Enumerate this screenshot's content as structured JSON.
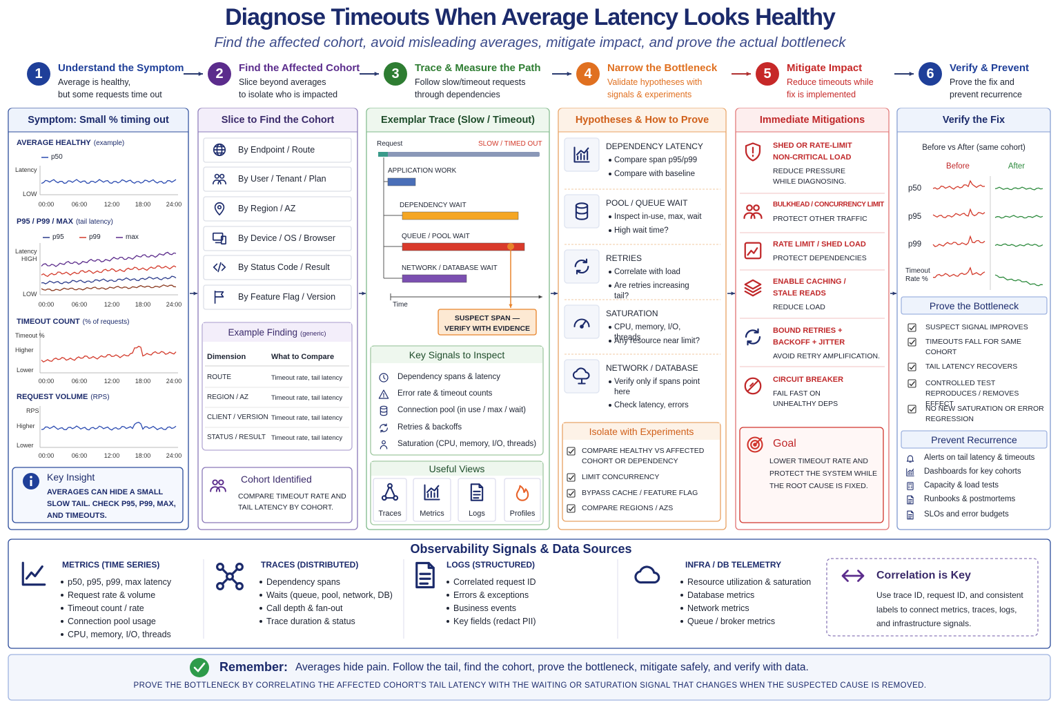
{
  "header": {
    "title": "Diagnose Timeouts When Average Latency Looks Healthy",
    "subtitle": "Find the affected cohort, avoid misleading averages, mitigate impact, and prove the actual bottleneck"
  },
  "steps": [
    {
      "number": 1,
      "title": "Understand the Symptom",
      "lines": [
        "Average is healthy,",
        "but some requests time out"
      ]
    },
    {
      "number": 2,
      "title": "Find the Affected Cohort",
      "lines": [
        "Slice beyond averages",
        "to isolate who is impacted"
      ]
    },
    {
      "number": 3,
      "title": "Trace & Measure the Path",
      "lines": [
        "Follow slow/timeout requests",
        "through dependencies"
      ]
    },
    {
      "number": 4,
      "title": "Narrow the Bottleneck",
      "lines": [
        "Validate hypotheses with",
        "signals & experiments"
      ]
    },
    {
      "number": 5,
      "title": "Mitigate Impact",
      "lines": [
        "Reduce timeouts while",
        "fix is implemented"
      ]
    },
    {
      "number": 6,
      "title": "Verify & Prevent",
      "lines": [
        "Prove the fix and",
        "prevent recurrence"
      ]
    }
  ],
  "symptom": {
    "title": "Symptom: Small % timing out",
    "charts": [
      {
        "title": "AVERAGE HEALTHY",
        "note": "(example)",
        "legend": [
          "p50"
        ],
        "y_labels": [
          "Latency",
          "LOW"
        ],
        "x_labels": [
          "00:00",
          "06:00",
          "12:00",
          "18:00",
          "24:00"
        ]
      },
      {
        "title": "P95 / P99 / MAX",
        "note": "(tail latency)",
        "legend": [
          "p95",
          "p99",
          "max"
        ],
        "y_labels": [
          "Latency",
          "HIGH",
          "LOW"
        ],
        "x_labels": [
          "00:00",
          "06:00",
          "12:00",
          "18:00",
          "24:00"
        ]
      },
      {
        "title": "TIMEOUT COUNT",
        "note": "(% of requests)",
        "y_labels": [
          "Timeout %",
          "Higher",
          "Lower"
        ],
        "x_labels": [
          "00:00",
          "06:00",
          "12:00",
          "18:00",
          "24:00"
        ]
      },
      {
        "title": "REQUEST VOLUME",
        "note": "(RPS)",
        "y_labels": [
          "RPS",
          "Higher",
          "Lower"
        ],
        "x_labels": [
          "00:00",
          "06:00",
          "12:00",
          "18:00",
          "24:00"
        ]
      }
    ],
    "insight": {
      "title": "Key Insight",
      "text": "AVERAGES CAN HIDE A SMALL SLOW TAIL. CHECK P95, P99, MAX, AND TIMEOUTS."
    }
  },
  "cohort": {
    "title": "Slice to Find the Cohort",
    "slices": [
      "By Endpoint / Route",
      "By User / Tenant / Plan",
      "By Region / AZ",
      "By Device / OS / Browser",
      "By Status Code / Result",
      "By Feature Flag / Version"
    ],
    "finding": {
      "title": "Example Finding",
      "note": "(generic)",
      "columns": [
        "Dimension",
        "What to Compare"
      ],
      "rows": [
        [
          "ROUTE",
          "Timeout rate, tail latency"
        ],
        [
          "REGION / AZ",
          "Timeout rate, tail latency"
        ],
        [
          "CLIENT / VERSION",
          "Timeout rate, tail latency"
        ],
        [
          "STATUS / RESULT",
          "Timeout rate, tail latency"
        ]
      ]
    },
    "identified": {
      "title": "Cohort Identified",
      "text": "COMPARE TIMEOUT RATE AND TAIL LATENCY BY COHORT."
    }
  },
  "trace": {
    "title": "Exemplar Trace (Slow / Timeout)",
    "request": "Request",
    "status": "SLOW / TIMED OUT",
    "spans": [
      "APPLICATION WORK",
      "DEPENDENCY WAIT",
      "QUEUE / POOL WAIT",
      "NETWORK / DATABASE WAIT"
    ],
    "axis": "Time",
    "suspect": [
      "SUSPECT SPAN —",
      "VERIFY WITH EVIDENCE"
    ],
    "signals": {
      "title": "Key Signals to Inspect",
      "items": [
        "Dependency spans & latency",
        "Error rate & timeout counts",
        "Connection pool (in use / max / wait)",
        "Retries & backoffs",
        "Saturation (CPU, memory, I/O, threads)"
      ]
    },
    "views": {
      "title": "Useful Views",
      "items": [
        "Traces",
        "Metrics",
        "Logs",
        "Profiles"
      ]
    }
  },
  "hypotheses": {
    "title": "Hypotheses & How to Prove",
    "items": [
      {
        "title": "DEPENDENCY LATENCY",
        "bullets": [
          "Compare span p95/p99",
          "Compare with baseline"
        ]
      },
      {
        "title": "POOL / QUEUE WAIT",
        "bullets": [
          "Inspect in-use, max, wait",
          "High wait time?"
        ]
      },
      {
        "title": "RETRIES",
        "bullets": [
          "Correlate with load",
          "Are retries increasing tail?"
        ]
      },
      {
        "title": "SATURATION",
        "bullets": [
          "CPU, memory, I/O, threads",
          "Any resource near limit?"
        ]
      },
      {
        "title": "NETWORK / DATABASE",
        "bullets": [
          "Verify only if spans point here",
          "Check latency, errors"
        ]
      }
    ],
    "experiments": {
      "title": "Isolate with Experiments",
      "items": [
        "COMPARE HEALTHY VS AFFECTED COHORT OR DEPENDENCY",
        "LIMIT CONCURRENCY",
        "BYPASS CACHE / FEATURE FLAG",
        "COMPARE REGIONS / AZS"
      ]
    }
  },
  "mitigations": {
    "title": "Immediate Mitigations",
    "items": [
      {
        "title": [
          "SHED OR RATE-LIMIT",
          "NON-CRITICAL LOAD"
        ],
        "text": [
          "REDUCE PRESSURE",
          "WHILE DIAGNOSING."
        ]
      },
      {
        "title": [
          "BULKHEAD / CONCURRENCY LIMIT"
        ],
        "text": [
          "PROTECT OTHER TRAFFIC"
        ]
      },
      {
        "title": [
          "RATE LIMIT / SHED LOAD"
        ],
        "text": [
          "PROTECT DEPENDENCIES"
        ]
      },
      {
        "title": [
          "ENABLE CACHING /",
          "STALE READS"
        ],
        "text": [
          "REDUCE LOAD"
        ]
      },
      {
        "title": [
          "BOUND RETRIES +",
          "BACKOFF + JITTER"
        ],
        "text": [
          "AVOID RETRY AMPLIFICATION."
        ]
      },
      {
        "title": [
          "CIRCUIT BREAKER"
        ],
        "text": [
          "FAIL FAST ON",
          "UNHEALTHY DEPS"
        ]
      }
    ],
    "goal": {
      "title": "Goal",
      "text": "LOWER TIMEOUT RATE AND PROTECT THE SYSTEM WHILE THE ROOT CAUSE IS FIXED."
    }
  },
  "verify": {
    "title": "Verify the Fix",
    "comparison": "Before vs After (same cohort)",
    "before": "Before",
    "after": "After",
    "rows": [
      "p50",
      "p95",
      "p99",
      "Timeout Rate %"
    ],
    "prove": {
      "title": "Prove the Bottleneck",
      "items": [
        "SUSPECT SIGNAL IMPROVES",
        "TIMEOUTS FALL FOR SAME COHORT",
        "TAIL LATENCY RECOVERS",
        "CONTROLLED TEST REPRODUCES / REMOVES EFFECT",
        "NO NEW SATURATION OR ERROR REGRESSION"
      ]
    },
    "prevent": {
      "title": "Prevent Recurrence",
      "items": [
        "Alerts on tail latency & timeouts",
        "Dashboards for key cohorts",
        "Capacity & load tests",
        "Runbooks & postmortems",
        "SLOs and error budgets"
      ]
    }
  },
  "sources": {
    "title": "Observability Signals & Data Sources",
    "groups": [
      {
        "title": "METRICS (TIME SERIES)",
        "items": [
          "p50, p95, p99, max latency",
          "Request rate & volume",
          "Timeout count / rate",
          "Connection pool usage",
          "CPU, memory, I/O, threads"
        ]
      },
      {
        "title": "TRACES (DISTRIBUTED)",
        "items": [
          "Dependency spans",
          "Waits (queue, pool, network, DB)",
          "Call depth & fan-out",
          "Trace duration & status"
        ]
      },
      {
        "title": "LOGS (STRUCTURED)",
        "items": [
          "Correlated request ID",
          "Errors & exceptions",
          "Business events",
          "Key fields (redact PII)"
        ]
      },
      {
        "title": "INFRA / DB TELEMETRY",
        "items": [
          "Resource utilization & saturation",
          "Database metrics",
          "Network metrics",
          "Queue / broker metrics"
        ]
      }
    ],
    "correlation": {
      "title": "Correlation is Key",
      "text": "Use trace ID, request ID, and consistent labels to connect metrics, traces, logs, and infrastructure signals."
    }
  },
  "remember": {
    "label": "Remember:",
    "text": "Averages hide pain. Follow the tail, find the cohort, prove the bottleneck, mitigate safely, and verify with data.",
    "caption": "PROVE THE BOTTLENECK BY CORRELATING THE AFFECTED COHORT'S TAIL LATENCY WITH THE WAITING OR SATURATION SIGNAL THAT CHANGES WHEN THE SUSPECTED CAUSE IS REMOVED."
  }
}
